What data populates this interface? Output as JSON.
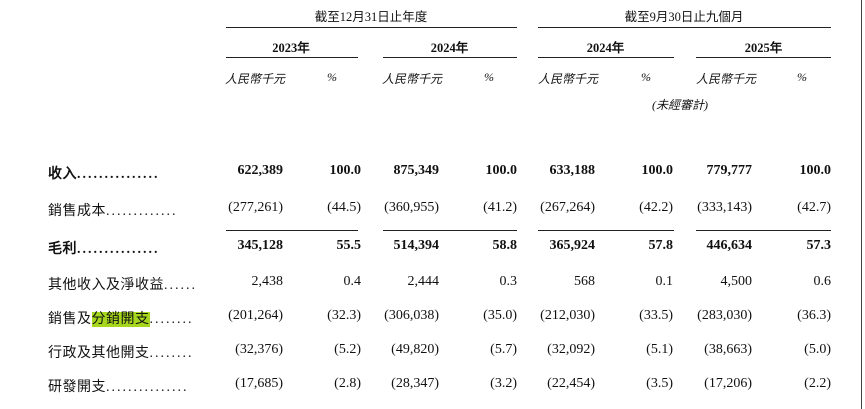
{
  "header": {
    "period_fy": "截至12月31日止年度",
    "period_9m": "截至9月30日止九個月",
    "years": [
      "2023年",
      "2024年",
      "2024年",
      "2025年"
    ],
    "unit_currency": "人民幣千元",
    "unit_pct": "%",
    "unaudited": "(未經審計)"
  },
  "rows": [
    {
      "label_pre": "收入",
      "label_hl": "",
      "label_post": "",
      "dots": "...............",
      "values": [
        "622,389",
        "100.0",
        "875,349",
        "100.0",
        "633,188",
        "100.0",
        "779,777",
        "100.0"
      ]
    },
    {
      "label_pre": "銷售成本",
      "label_hl": "",
      "label_post": "",
      "dots": ".............",
      "values": [
        "(277,261)",
        "(44.5)",
        "(360,955)",
        "(41.2)",
        "(267,264)",
        "(42.2)",
        "(333,143)",
        "(42.7)"
      ]
    },
    {
      "label_pre": "毛利",
      "label_hl": "",
      "label_post": "",
      "dots": "...............",
      "values": [
        "345,128",
        "55.5",
        "514,394",
        "58.8",
        "365,924",
        "57.8",
        "446,634",
        "57.3"
      ]
    },
    {
      "label_pre": "其他收入及淨收益",
      "label_hl": "",
      "label_post": "",
      "dots": "......",
      "values": [
        "2,438",
        "0.4",
        "2,444",
        "0.3",
        "568",
        "0.1",
        "4,500",
        "0.6"
      ]
    },
    {
      "label_pre": "銷售及",
      "label_hl": "分銷開支",
      "label_post": "",
      "dots": "........",
      "values": [
        "(201,264)",
        "(32.3)",
        "(306,038)",
        "(35.0)",
        "(212,030)",
        "(33.5)",
        "(283,030)",
        "(36.3)"
      ]
    },
    {
      "label_pre": "行政及其他開支",
      "label_hl": "",
      "label_post": "",
      "dots": "........",
      "values": [
        "(32,376)",
        "(5.2)",
        "(49,820)",
        "(5.7)",
        "(32,092)",
        "(5.1)",
        "(38,663)",
        "(5.0)"
      ]
    },
    {
      "label_pre": "研發開支",
      "label_hl": "",
      "label_post": "",
      "dots": "...............",
      "values": [
        "(17,685)",
        "(2.8)",
        "(28,347)",
        "(3.2)",
        "(22,454)",
        "(3.5)",
        "(17,206)",
        "(2.2)"
      ]
    }
  ]
}
